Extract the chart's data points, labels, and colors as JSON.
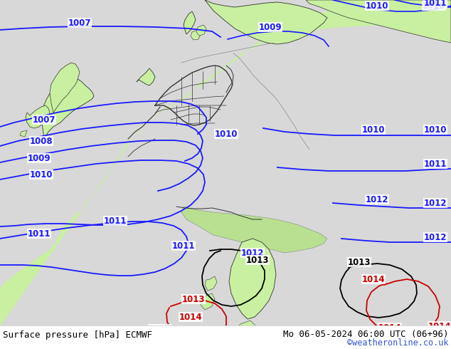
{
  "title_left": "Surface pressure [hPa] ECMWF",
  "title_right": "Mo 06-05-2024 06:00 UTC (06+96)",
  "credit": "©weatheronline.co.uk",
  "bg_land": "#c8f0a0",
  "bg_sea": "#d8d8d8",
  "bg_sea2": "#c8c8c8",
  "border_dark": "#333333",
  "border_mid": "#666666",
  "border_light": "#999999",
  "isobar_blue": "#1a1aff",
  "isobar_red": "#cc0000",
  "isobar_black": "#000000",
  "credit_color": "#3355cc",
  "fig_bg": "#ffffff",
  "caption_bg": "#ffffff"
}
